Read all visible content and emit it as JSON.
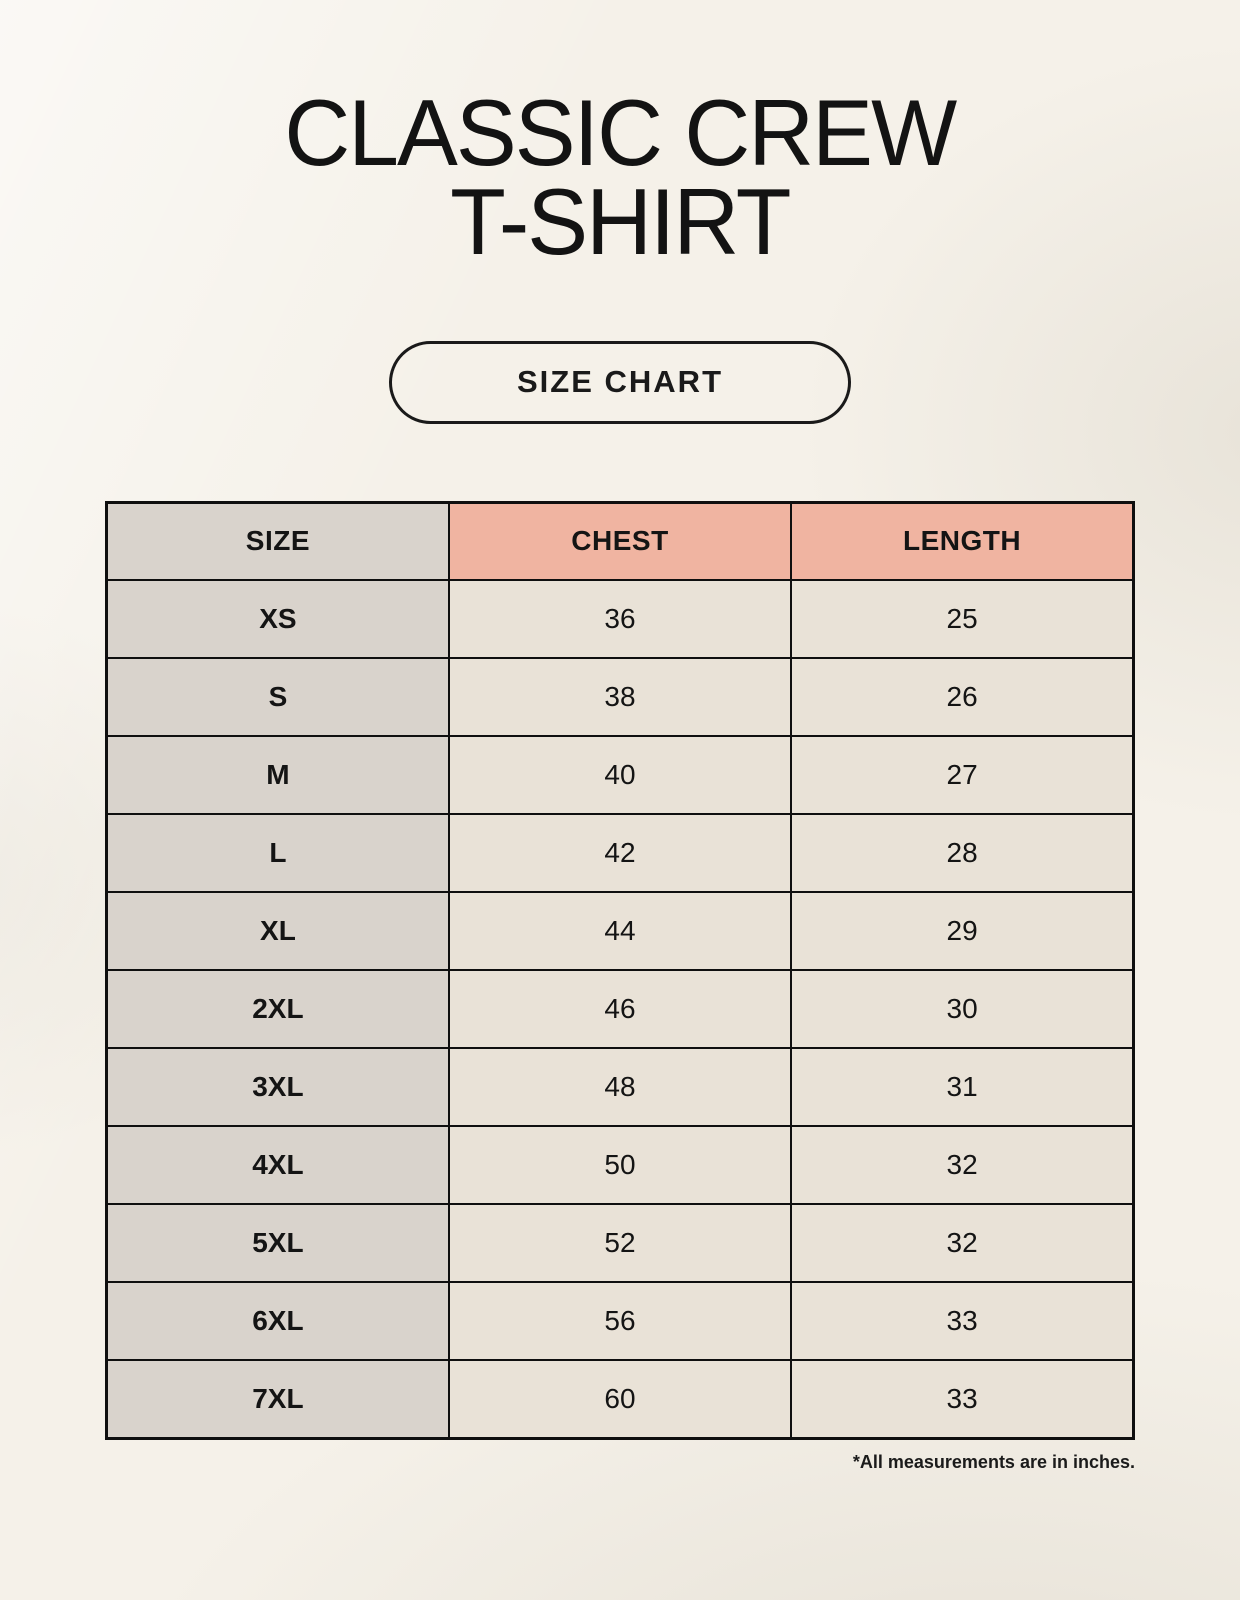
{
  "header": {
    "title_line1": "CLASSIC CREW",
    "title_line2": "T-SHIRT"
  },
  "badge": {
    "label": "SIZE CHART"
  },
  "table": {
    "columns": [
      "SIZE",
      "CHEST",
      "LENGTH"
    ],
    "rows": [
      [
        "XS",
        "36",
        "25"
      ],
      [
        "S",
        "38",
        "26"
      ],
      [
        "M",
        "40",
        "27"
      ],
      [
        "L",
        "42",
        "28"
      ],
      [
        "XL",
        "44",
        "29"
      ],
      [
        "2XL",
        "46",
        "30"
      ],
      [
        "3XL",
        "48",
        "31"
      ],
      [
        "4XL",
        "50",
        "32"
      ],
      [
        "5XL",
        "52",
        "32"
      ],
      [
        "6XL",
        "56",
        "33"
      ],
      [
        "7XL",
        "60",
        "33"
      ]
    ],
    "units": "inches"
  },
  "footnote": {
    "text": "*All measurements are in inches."
  },
  "colors": {
    "background": "#f5f1e9",
    "size_column_bg": "#d9d3cc",
    "header_accent_bg": "#f0b4a1",
    "value_cell_bg": "#e9e2d7",
    "border": "#0f0f0f",
    "text": "#141414"
  }
}
